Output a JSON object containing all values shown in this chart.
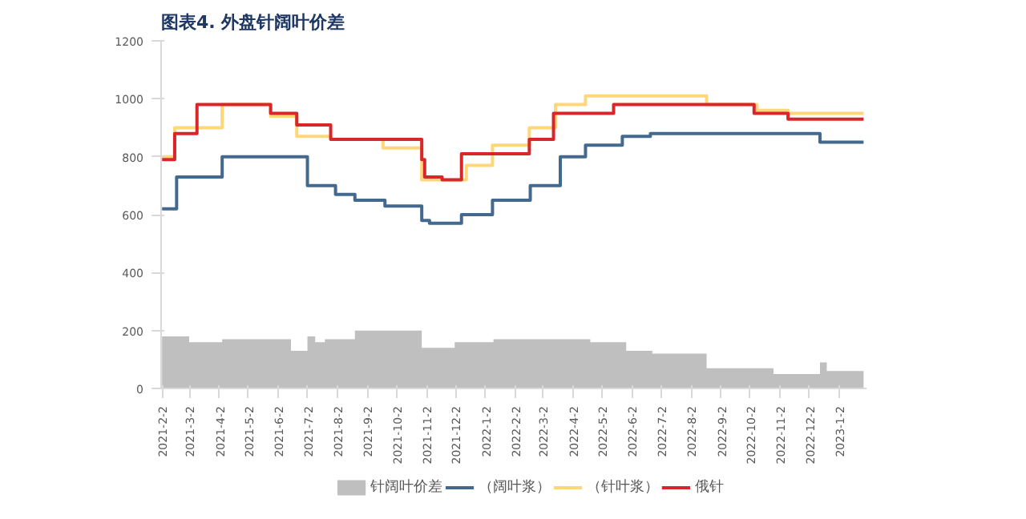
{
  "chart_data": {
    "type": "step",
    "title": "图表4.   外盘针阔叶价差",
    "xlim": [
      "2021-02-01",
      "2023-01-30"
    ],
    "xticks": [
      {
        "value": "2021-02-02",
        "label": "2021-2-2"
      },
      {
        "value": "2021-03-02",
        "label": "2021-3-2"
      },
      {
        "value": "2021-04-02",
        "label": "2021-4-2"
      },
      {
        "value": "2021-05-02",
        "label": "2021-5-2"
      },
      {
        "value": "2021-06-02",
        "label": "2021-6-2"
      },
      {
        "value": "2021-07-02",
        "label": "2021-7-2"
      },
      {
        "value": "2021-08-02",
        "label": "2021-8-2"
      },
      {
        "value": "2021-09-02",
        "label": "2021-9-2"
      },
      {
        "value": "2021-10-02",
        "label": "2021-10-2"
      },
      {
        "value": "2021-11-02",
        "label": "2021-11-2"
      },
      {
        "value": "2021-12-02",
        "label": "2021-12-2"
      },
      {
        "value": "2022-01-02",
        "label": "2022-1-2"
      },
      {
        "value": "2022-02-02",
        "label": "2022-2-2"
      },
      {
        "value": "2022-03-02",
        "label": "2022-3-2"
      },
      {
        "value": "2022-04-02",
        "label": "2022-4-2"
      },
      {
        "value": "2022-05-02",
        "label": "2022-5-2"
      },
      {
        "value": "2022-06-02",
        "label": "2022-6-2"
      },
      {
        "value": "2022-07-02",
        "label": "2022-7-2"
      },
      {
        "value": "2022-08-02",
        "label": "2022-8-2"
      },
      {
        "value": "2022-09-02",
        "label": "2022-9-2"
      },
      {
        "value": "2022-10-02",
        "label": "2022-10-2"
      },
      {
        "value": "2022-11-02",
        "label": "2022-11-2"
      },
      {
        "value": "2022-12-02",
        "label": "2022-12-2"
      },
      {
        "value": "2023-01-02",
        "label": "2023-1-2"
      }
    ],
    "ylim": [
      0,
      1200
    ],
    "yticks": [
      0,
      200,
      400,
      600,
      800,
      1000,
      1200
    ],
    "grid": false,
    "legend": "bottom",
    "series": [
      {
        "type": "area",
        "name": "针阔叶价差",
        "color": "#bfbfbf",
        "x": [
          "2021-02-02",
          "2021-03-02",
          "2021-04-05",
          "2021-06-15",
          "2021-07-02",
          "2021-07-10",
          "2021-07-20",
          "2021-08-20",
          "2021-10-28",
          "2021-12-01",
          "2022-01-10",
          "2022-04-20",
          "2022-05-27",
          "2022-06-23",
          "2022-08-18",
          "2022-10-26",
          "2022-12-13",
          "2022-12-20",
          "2023-01-27"
        ],
        "values": [
          180,
          160,
          170,
          130,
          180,
          160,
          170,
          200,
          140,
          160,
          170,
          160,
          130,
          120,
          70,
          50,
          90,
          60,
          60
        ]
      },
      {
        "type": "step",
        "name": "（阔叶浆）",
        "color": "#44698f",
        "x": [
          "2021-02-02",
          "2021-02-17",
          "2021-04-05",
          "2021-07-02",
          "2021-07-31",
          "2021-08-20",
          "2021-09-20",
          "2021-10-28",
          "2021-11-05",
          "2021-12-08",
          "2022-01-09",
          "2022-02-17",
          "2022-03-20",
          "2022-04-15",
          "2022-05-23",
          "2022-06-21",
          "2022-12-13",
          "2023-01-27"
        ],
        "values": [
          620,
          730,
          800,
          700,
          670,
          650,
          630,
          580,
          570,
          600,
          650,
          700,
          800,
          840,
          870,
          880,
          850,
          850
        ]
      },
      {
        "name": "（针叶浆）",
        "color": "#fdd77a",
        "x": [
          "2021-02-02",
          "2021-02-15",
          "2021-04-05",
          "2021-05-25",
          "2021-06-21",
          "2021-07-26",
          "2021-09-18",
          "2021-10-28",
          "2021-12-13",
          "2022-01-09",
          "2022-02-16",
          "2022-03-15",
          "2022-04-15",
          "2022-08-18",
          "2022-10-09",
          "2022-11-10",
          "2023-01-27"
        ],
        "values": [
          800,
          900,
          980,
          940,
          870,
          860,
          830,
          720,
          770,
          840,
          900,
          980,
          1010,
          980,
          960,
          950,
          950
        ]
      },
      {
        "name": "俄针",
        "color": "#d9262b",
        "x": [
          "2021-02-02",
          "2021-02-15",
          "2021-03-10",
          "2021-05-25",
          "2021-06-21",
          "2021-07-26",
          "2021-10-28",
          "2021-10-31",
          "2021-11-18",
          "2021-12-08",
          "2022-02-16",
          "2022-03-13",
          "2022-05-14",
          "2022-10-06",
          "2022-11-10",
          "2023-01-27"
        ],
        "values": [
          790,
          880,
          980,
          950,
          910,
          860,
          790,
          730,
          720,
          810,
          860,
          950,
          980,
          950,
          930,
          930
        ]
      }
    ]
  }
}
